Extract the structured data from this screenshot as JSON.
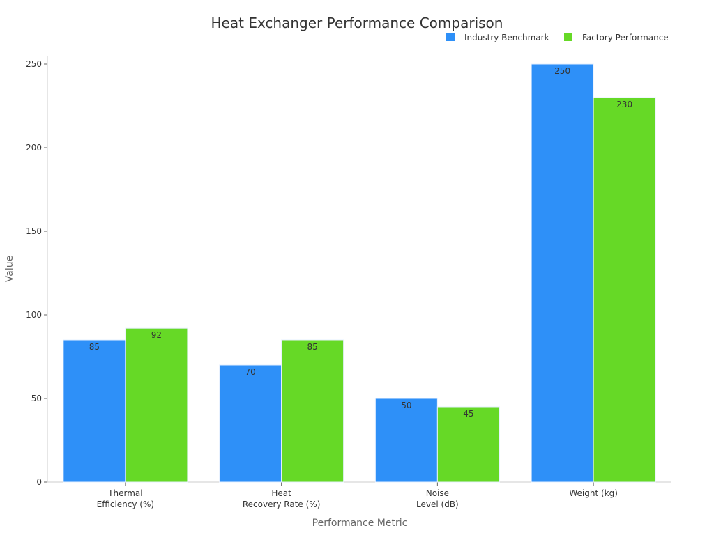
{
  "chart_data": {
    "type": "bar",
    "title": "Heat Exchanger Performance Comparison",
    "xlabel": "Performance Metric",
    "ylabel": "Value",
    "categories": [
      [
        "Thermal",
        "Efficiency (%)"
      ],
      [
        "Heat",
        "Recovery Rate (%)"
      ],
      [
        "Noise",
        "Level (dB)"
      ],
      [
        "Weight (kg)"
      ]
    ],
    "series": [
      {
        "name": "Industry Benchmark",
        "values": [
          85,
          70,
          50,
          250
        ],
        "color": "#2e90f8"
      },
      {
        "name": "Factory Performance",
        "values": [
          92,
          85,
          45,
          230
        ],
        "color": "#66d926"
      }
    ],
    "ylim": [
      0,
      255
    ],
    "yticks": [
      0,
      50,
      100,
      150,
      200,
      250
    ],
    "grid": false,
    "legend": "top-right",
    "data_labels": true
  }
}
